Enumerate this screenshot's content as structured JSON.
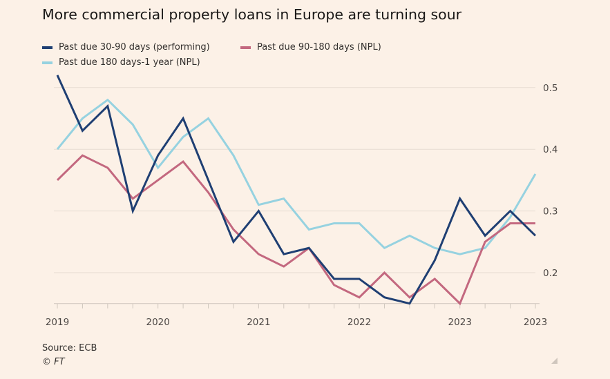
{
  "chart_data": {
    "type": "line",
    "title": "More commercial property loans in Europe are turning sour",
    "x": [
      "2019 Q1",
      "2019 Q2",
      "2019 Q3",
      "2019 Q4",
      "2020 Q1",
      "2020 Q2",
      "2020 Q3",
      "2020 Q4",
      "2021 Q1",
      "2021 Q2",
      "2021 Q3",
      "2021 Q4",
      "2022 Q1",
      "2022 Q2",
      "2022 Q3",
      "2022 Q4",
      "2023 Q1",
      "2023 Q2",
      "2023 Q3",
      "2023 Q4"
    ],
    "x_tick_labels": [
      {
        "index": 0,
        "label": "2019"
      },
      {
        "index": 4,
        "label": "2020"
      },
      {
        "index": 8,
        "label": "2021"
      },
      {
        "index": 12,
        "label": "2022"
      },
      {
        "index": 16,
        "label": "2023"
      },
      {
        "index": 19,
        "label": "2023"
      }
    ],
    "y_ticks": [
      0.2,
      0.3,
      0.4,
      0.5
    ],
    "y_tick_labels": [
      "0.2",
      "0.3",
      "0.4",
      "0.5"
    ],
    "ylim": [
      0.15,
      0.52
    ],
    "y_axis_position": "right",
    "grid": true,
    "legend_position": "top-left",
    "series": [
      {
        "name": "Past due 30-90 days (performing)",
        "color": "#1f3f73",
        "values": [
          0.52,
          0.43,
          0.47,
          0.3,
          0.39,
          0.45,
          0.35,
          0.25,
          0.3,
          0.23,
          0.24,
          0.19,
          0.19,
          0.16,
          0.15,
          0.22,
          0.32,
          0.26,
          0.3,
          0.26
        ]
      },
      {
        "name": "Past due 90-180 days (NPL)",
        "color": "#c3687f",
        "values": [
          0.35,
          0.39,
          0.37,
          0.32,
          0.35,
          0.38,
          0.33,
          0.27,
          0.23,
          0.21,
          0.24,
          0.18,
          0.16,
          0.2,
          0.16,
          0.19,
          0.15,
          0.25,
          0.28,
          0.28
        ]
      },
      {
        "name": "Past due 180 days-1 year (NPL)",
        "color": "#96d2e0",
        "values": [
          0.4,
          0.45,
          0.48,
          0.44,
          0.37,
          0.42,
          0.45,
          0.39,
          0.31,
          0.32,
          0.27,
          0.28,
          0.28,
          0.24,
          0.26,
          0.24,
          0.23,
          0.24,
          0.29,
          0.36
        ]
      }
    ]
  },
  "footer": {
    "source": "Source: ECB",
    "credit": "© FT"
  }
}
